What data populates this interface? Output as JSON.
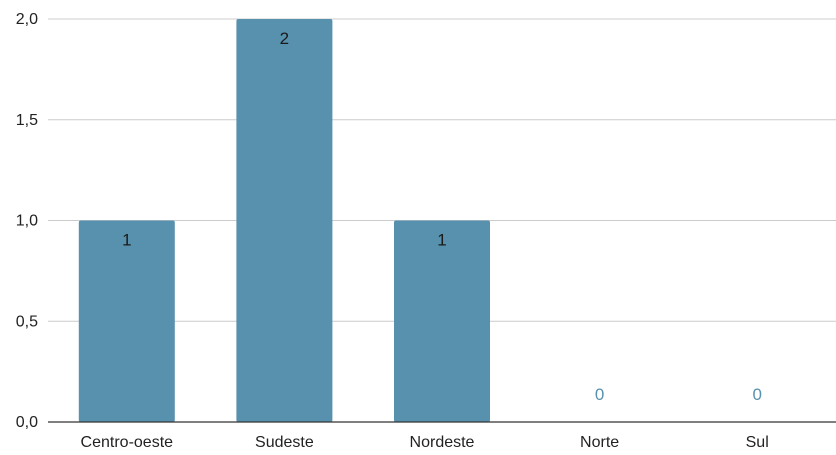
{
  "chart_data": {
    "type": "bar",
    "categories": [
      "Centro-oeste",
      "Sudeste",
      "Nordeste",
      "Norte",
      "Sul"
    ],
    "values": [
      1,
      2,
      1,
      0,
      0
    ],
    "data_labels": [
      "1",
      "2",
      "1",
      "0",
      "0"
    ],
    "ylim": [
      0,
      2
    ],
    "y_ticks": [
      {
        "value": 0,
        "label": "0,0"
      },
      {
        "value": 0.5,
        "label": "0,5"
      },
      {
        "value": 1,
        "label": "1,0"
      },
      {
        "value": 1.5,
        "label": "1,5"
      },
      {
        "value": 2,
        "label": "2,0"
      }
    ],
    "grid": true,
    "legend": "none",
    "colors": {
      "bar": "#5891ad",
      "label_inside": "#1a1a1a",
      "label_zero": "#5891ad",
      "grid": "#cccccc",
      "axis": "#333333",
      "tick_text": "#222222"
    }
  }
}
